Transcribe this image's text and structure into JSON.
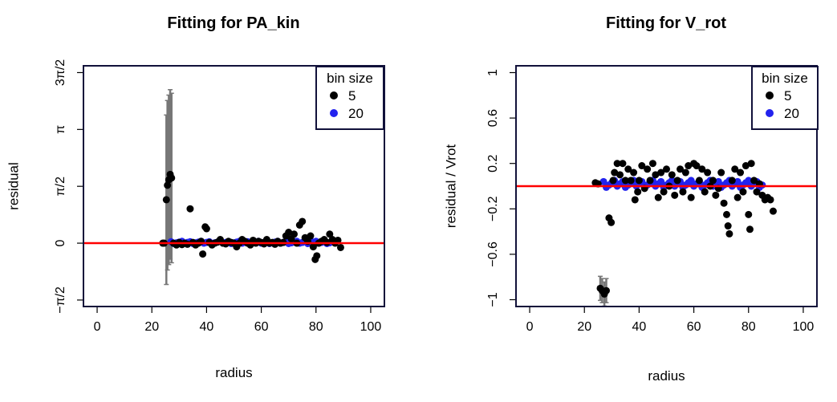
{
  "chart_data": [
    {
      "type": "scatter",
      "title": "Fitting for PA_kin",
      "xlabel": "radius",
      "ylabel": "residual",
      "xlim": [
        -5,
        105
      ],
      "ylim": [
        -1.75,
        4.9
      ],
      "x_ticks": [
        0,
        20,
        40,
        60,
        80,
        100
      ],
      "x_tick_labels": [
        "0",
        "20",
        "40",
        "60",
        "80",
        "100"
      ],
      "y_ticks": [
        -1.5708,
        0,
        1.5708,
        3.1416,
        4.7124
      ],
      "y_tick_labels": [
        "−π/2",
        "0",
        "π/2",
        "π",
        "3π/2"
      ],
      "reference_line": {
        "y": 0,
        "color": "#ff0000"
      },
      "legend": {
        "title": "bin size",
        "position": "top-right",
        "entries": [
          "5",
          "20"
        ],
        "colors": [
          "#000000",
          "#2222ee"
        ]
      },
      "series": [
        {
          "name": "5",
          "color": "#000000",
          "points": [
            [
              24,
              0.0
            ],
            [
              24.5,
              0.0
            ],
            [
              25.3,
              1.2
            ],
            [
              25.7,
              1.6
            ],
            [
              26.2,
              1.75
            ],
            [
              26.7,
              1.9
            ],
            [
              27.2,
              1.8
            ],
            [
              27.9,
              0.0
            ],
            [
              29,
              -0.05
            ],
            [
              30,
              0.02
            ],
            [
              31,
              -0.04
            ],
            [
              32,
              0.0
            ],
            [
              33,
              -0.03
            ],
            [
              34,
              0.95
            ],
            [
              35,
              0.02
            ],
            [
              36,
              -0.05
            ],
            [
              37,
              0.0
            ],
            [
              38,
              0.05
            ],
            [
              38.6,
              -0.3
            ],
            [
              39.5,
              0.45
            ],
            [
              40,
              0.4
            ],
            [
              41,
              0.02
            ],
            [
              42,
              -0.05
            ],
            [
              43,
              0.0
            ],
            [
              44,
              0.03
            ],
            [
              45,
              0.1
            ],
            [
              46,
              0.0
            ],
            [
              47,
              -0.02
            ],
            [
              48,
              0.05
            ],
            [
              49,
              0.02
            ],
            [
              50,
              0.0
            ],
            [
              51,
              -0.1
            ],
            [
              52,
              0.0
            ],
            [
              53,
              0.1
            ],
            [
              54,
              0.05
            ],
            [
              55,
              0.0
            ],
            [
              56,
              -0.05
            ],
            [
              57,
              0.08
            ],
            [
              58,
              0.0
            ],
            [
              59,
              0.05
            ],
            [
              60,
              0.02
            ],
            [
              61,
              -0.02
            ],
            [
              62,
              0.1
            ],
            [
              63,
              0.0
            ],
            [
              64,
              0.02
            ],
            [
              65,
              -0.03
            ],
            [
              66,
              0.05
            ],
            [
              67,
              0.0
            ],
            [
              68,
              0.02
            ],
            [
              69,
              0.2
            ],
            [
              70,
              0.3
            ],
            [
              71,
              0.12
            ],
            [
              72,
              0.25
            ],
            [
              73,
              0.0
            ],
            [
              74,
              0.5
            ],
            [
              75,
              0.6
            ],
            [
              76,
              0.15
            ],
            [
              77,
              0.05
            ],
            [
              78,
              0.2
            ],
            [
              79,
              -0.1
            ],
            [
              79.7,
              -0.45
            ],
            [
              80.3,
              -0.35
            ],
            [
              81,
              0.0
            ],
            [
              82,
              0.05
            ],
            [
              83,
              0.1
            ],
            [
              84,
              0.02
            ],
            [
              85,
              0.25
            ],
            [
              86,
              0.1
            ],
            [
              87,
              0.0
            ],
            [
              88,
              0.08
            ],
            [
              89,
              -0.12
            ]
          ]
        },
        {
          "name": "20",
          "color": "#2222ee",
          "x_range": [
            27,
            85
          ],
          "y": 0.02
        }
      ]
    },
    {
      "type": "scatter",
      "title": "Fitting for V_rot",
      "xlabel": "radius",
      "ylabel": "residual / Vrot",
      "xlim": [
        -5,
        105
      ],
      "ylim": [
        -1.06,
        1.06
      ],
      "x_ticks": [
        0,
        20,
        40,
        60,
        80,
        100
      ],
      "x_tick_labels": [
        "0",
        "20",
        "40",
        "60",
        "80",
        "100"
      ],
      "y_ticks": [
        -1,
        -0.6,
        -0.2,
        0.2,
        0.6,
        1
      ],
      "y_tick_labels": [
        "−1",
        "−0.6",
        "−0.2",
        "0.2",
        "0.6",
        "1"
      ],
      "reference_line": {
        "y": 0,
        "color": "#ff0000"
      },
      "legend": {
        "title": "bin size",
        "position": "top-right",
        "entries": [
          "5",
          "20"
        ],
        "colors": [
          "#000000",
          "#2222ee"
        ]
      },
      "series": [
        {
          "name": "5",
          "color": "#000000",
          "points": [
            [
              24,
              0.03
            ],
            [
              25,
              0.02
            ],
            [
              25.8,
              -0.9
            ],
            [
              26.5,
              -0.92
            ],
            [
              27.3,
              -0.95
            ],
            [
              28,
              -0.92
            ],
            [
              29,
              -0.28
            ],
            [
              29.8,
              -0.32
            ],
            [
              30.5,
              0.05
            ],
            [
              31,
              0.12
            ],
            [
              32,
              0.2
            ],
            [
              33,
              0.1
            ],
            [
              34,
              0.2
            ],
            [
              35,
              0.05
            ],
            [
              36,
              0.15
            ],
            [
              37,
              0.05
            ],
            [
              38,
              0.12
            ],
            [
              38.5,
              -0.12
            ],
            [
              39.5,
              -0.05
            ],
            [
              40,
              0.05
            ],
            [
              41,
              0.18
            ],
            [
              42,
              -0.02
            ],
            [
              43,
              0.15
            ],
            [
              44,
              0.05
            ],
            [
              45,
              0.2
            ],
            [
              46,
              0.1
            ],
            [
              47,
              -0.1
            ],
            [
              48,
              0.12
            ],
            [
              49,
              -0.05
            ],
            [
              50,
              0.15
            ],
            [
              51,
              0.0
            ],
            [
              52,
              0.1
            ],
            [
              53,
              -0.08
            ],
            [
              54,
              0.05
            ],
            [
              55,
              0.15
            ],
            [
              56,
              -0.05
            ],
            [
              57,
              0.12
            ],
            [
              58,
              0.18
            ],
            [
              59,
              -0.1
            ],
            [
              60,
              0.2
            ],
            [
              61,
              0.18
            ],
            [
              62,
              0.05
            ],
            [
              63,
              0.15
            ],
            [
              64,
              -0.05
            ],
            [
              65,
              0.12
            ],
            [
              66,
              0.0
            ],
            [
              67,
              0.05
            ],
            [
              68,
              -0.08
            ],
            [
              69,
              -0.02
            ],
            [
              70,
              0.12
            ],
            [
              71,
              -0.15
            ],
            [
              72,
              -0.25
            ],
            [
              72.5,
              -0.35
            ],
            [
              73,
              -0.42
            ],
            [
              74,
              0.05
            ],
            [
              75,
              0.15
            ],
            [
              76,
              -0.1
            ],
            [
              77,
              0.12
            ],
            [
              78,
              -0.05
            ],
            [
              79,
              0.18
            ],
            [
              80,
              -0.25
            ],
            [
              80.5,
              -0.38
            ],
            [
              81,
              0.2
            ],
            [
              82,
              0.05
            ],
            [
              83,
              -0.05
            ],
            [
              84,
              0.02
            ],
            [
              85,
              -0.08
            ],
            [
              86,
              -0.12
            ],
            [
              87,
              -0.1
            ],
            [
              88,
              -0.12
            ],
            [
              89,
              -0.22
            ]
          ]
        },
        {
          "name": "20",
          "color": "#2222ee",
          "x_range": [
            27,
            85
          ],
          "y": 0.02
        }
      ]
    }
  ]
}
